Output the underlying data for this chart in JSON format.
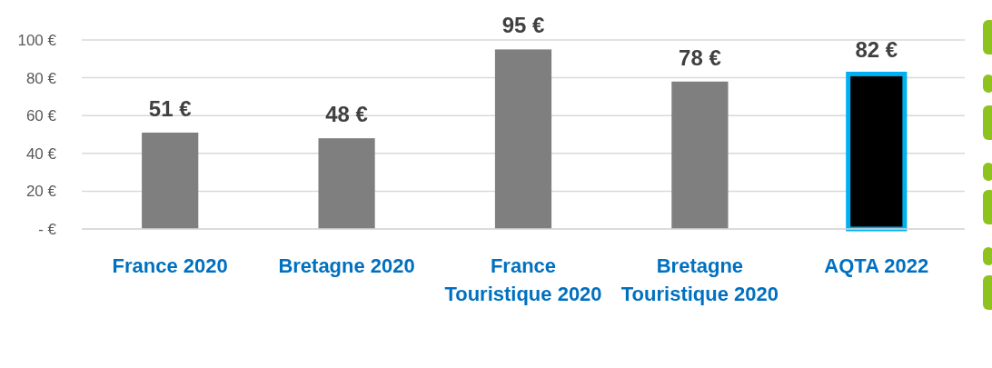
{
  "chart_data": {
    "type": "bar",
    "categories": [
      "France 2020",
      "Bretagne 2020",
      "France Touristique 2020",
      "Bretagne Touristique 2020",
      "AQTA 2022"
    ],
    "values": [
      51,
      48,
      95,
      78,
      82
    ],
    "colors": [
      "#7f7f7f",
      "#7f7f7f",
      "#7f7f7f",
      "#7f7f7f",
      "#000000"
    ],
    "value_labels": [
      "51 €",
      "48 €",
      "95 €",
      "78 €",
      "82 €"
    ],
    "ylim": [
      0,
      100
    ],
    "yticks": [
      {
        "value": 0,
        "label": "-   €"
      },
      {
        "value": 20,
        "label": "20 €"
      },
      {
        "value": 40,
        "label": "40 €"
      },
      {
        "value": 60,
        "label": "60 €"
      },
      {
        "value": 80,
        "label": "80 €"
      },
      {
        "value": 100,
        "label": "100 €"
      }
    ],
    "grid": "y"
  }
}
